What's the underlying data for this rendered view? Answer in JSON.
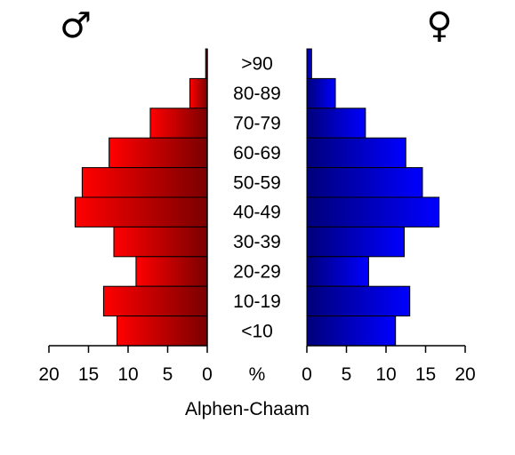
{
  "chart_data": {
    "type": "bar",
    "subtype": "population-pyramid",
    "title": "Alphen-Chaam",
    "male_symbol": "♂",
    "female_symbol": "♀",
    "unit_label": "%",
    "categories": [
      ">90",
      "80-89",
      "70-79",
      "60-69",
      "50-59",
      "40-49",
      "30-39",
      "20-29",
      "10-19",
      "<10"
    ],
    "series": [
      {
        "name": "male",
        "color": "#cc0000",
        "values": [
          0.2,
          2.2,
          7.2,
          12.4,
          15.8,
          16.7,
          11.8,
          9.0,
          13.1,
          11.4
        ]
      },
      {
        "name": "female",
        "color": "#0000cc",
        "values": [
          0.6,
          3.6,
          7.4,
          12.5,
          14.6,
          16.7,
          12.3,
          7.8,
          13.0,
          11.2
        ]
      }
    ],
    "xlim": [
      0,
      20
    ],
    "xticks": [
      "20",
      "15",
      "10",
      "5",
      "0"
    ],
    "xticks_right": [
      "0",
      "5",
      "10",
      "15",
      "20"
    ],
    "grid": false,
    "legend": "none"
  }
}
